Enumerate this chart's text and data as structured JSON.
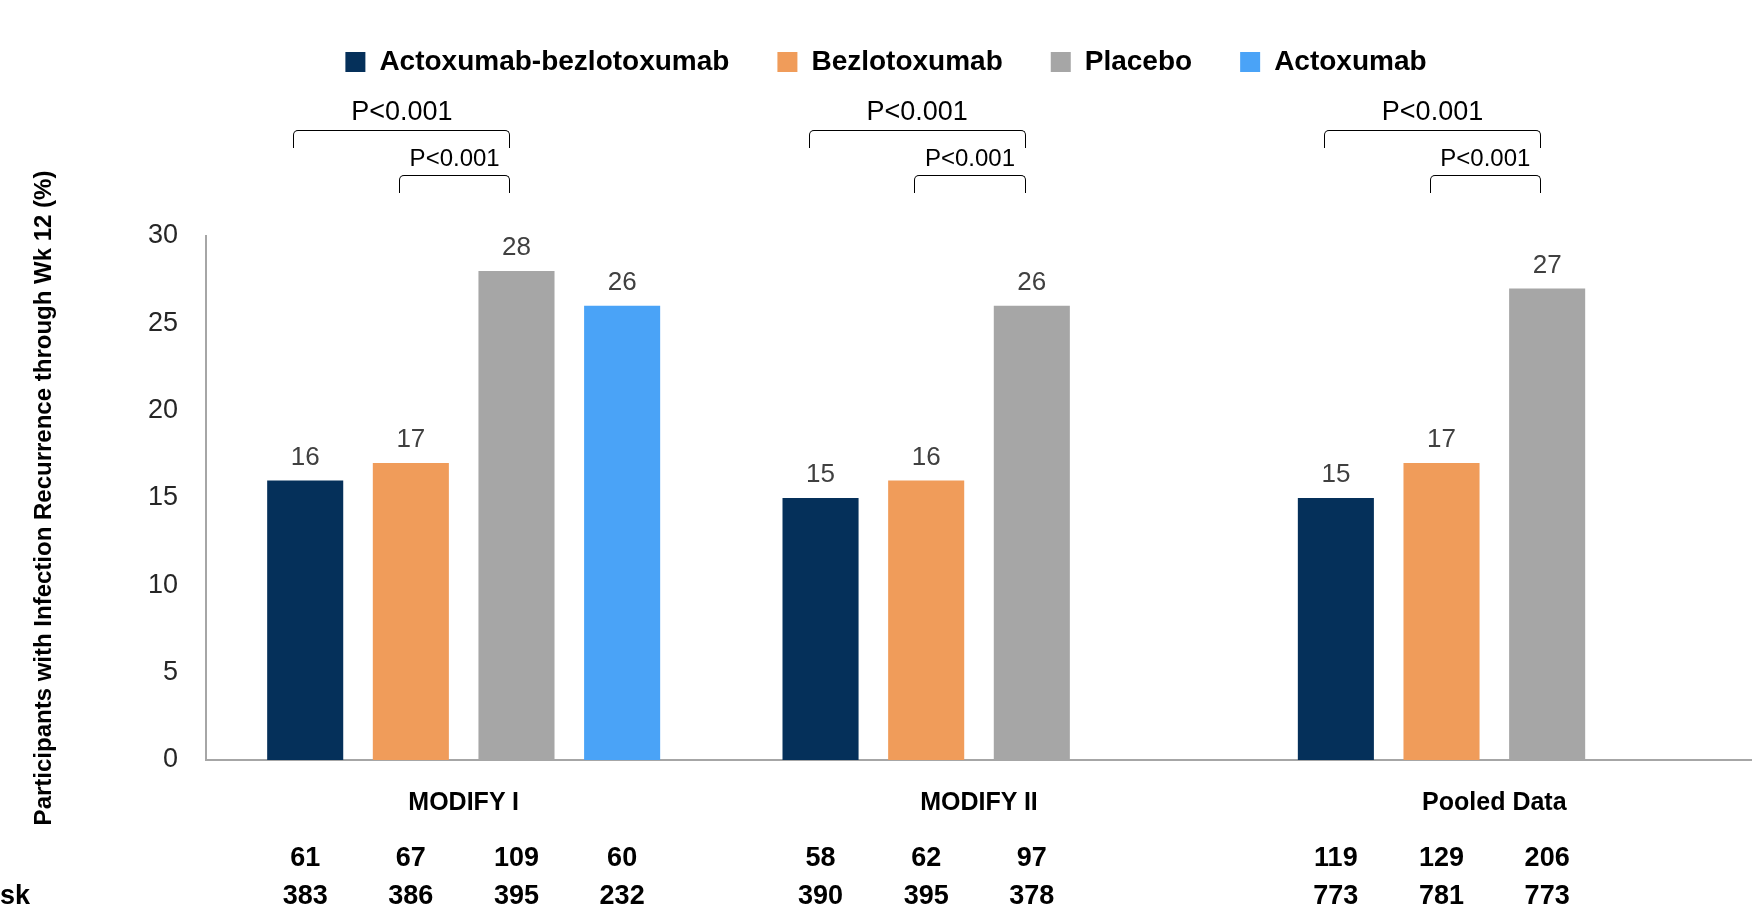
{
  "chart_data": {
    "type": "bar",
    "ylabel": "Participants with Infection Recurrence through Wk 12 (%)",
    "categories": [
      "MODIFY I",
      "MODIFY II",
      "Pooled Data"
    ],
    "series": [
      {
        "name": "Actoxumab-bezlotoxumab",
        "color": "#05305a",
        "values": [
          16,
          15,
          15
        ]
      },
      {
        "name": "Bezlotoxumab",
        "color": "#f09c5a",
        "values": [
          17,
          16,
          17
        ]
      },
      {
        "name": "Placebo",
        "color": "#a6a6a6",
        "values": [
          28,
          26,
          27
        ]
      },
      {
        "name": "Actoxumab",
        "color": "#4aa3f7",
        "values": [
          26,
          null,
          null
        ]
      }
    ],
    "ylim": [
      0,
      30
    ],
    "yticks": [
      0,
      5,
      10,
      15,
      20,
      25,
      30
    ],
    "grid": false,
    "legend": "top",
    "data_labels": true,
    "annotations": [
      "P<0.001",
      "P<0.001",
      "P<0.001",
      "P<0.001",
      "P<0.001",
      "P<0.001",
      "61",
      "67",
      "109",
      "60",
      "58",
      "62",
      "97",
      "119",
      "129",
      "206",
      "sk",
      "383",
      "386",
      "395",
      "232",
      "390",
      "395",
      "378",
      "773",
      "781",
      "773"
    ]
  }
}
